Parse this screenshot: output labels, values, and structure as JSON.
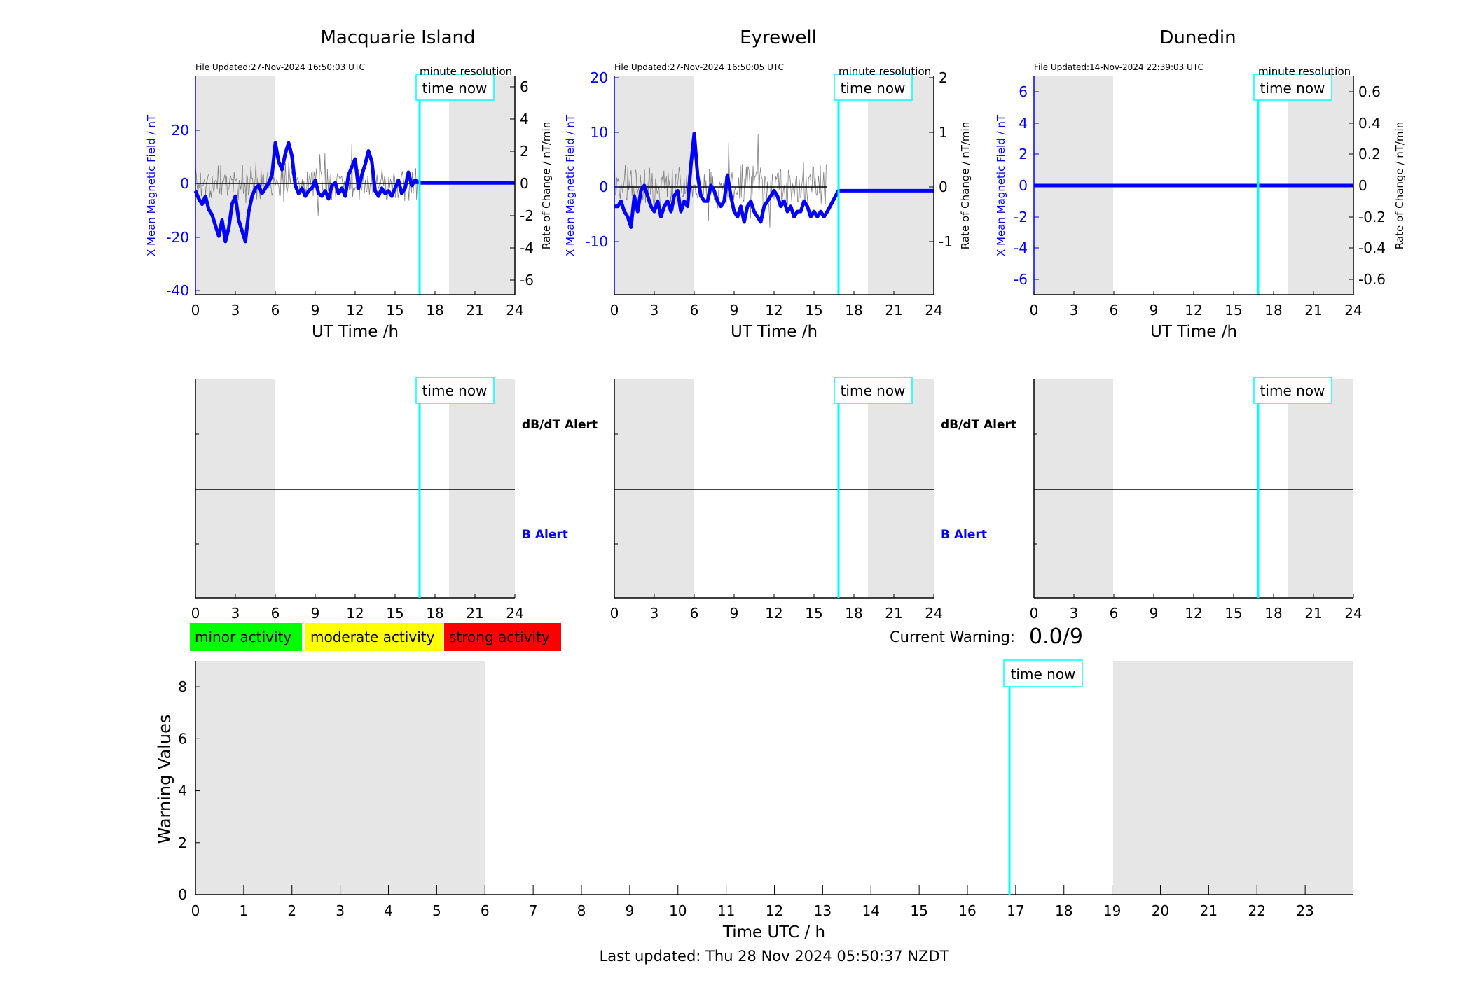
{
  "panels": [
    {
      "station": "Macquarie Island",
      "file_updated": "File Updated:27-Nov-2024 16:50:03 UTC",
      "resolution": "minute resolution",
      "left_ylabel": "X Mean Magnetic Field / nT",
      "right_ylabel": "Rate of Change / nT/min",
      "left_ticks": [
        "-40",
        "-20",
        "0",
        "20"
      ],
      "right_ticks": [
        "-6",
        "-4",
        "-2",
        "0",
        "2",
        "4",
        "6"
      ],
      "xlabel": "UT Time /h",
      "alert_dbdt": "dB/dT Alert",
      "alert_b": "B Alert"
    },
    {
      "station": "Eyrewell",
      "file_updated": "File Updated:27-Nov-2024 16:50:05 UTC",
      "resolution": "minute resolution",
      "left_ylabel": "X Mean Magnetic Field / nT",
      "right_ylabel": "Rate of Change / nT/min",
      "left_ticks": [
        "-10",
        "0",
        "10",
        "20"
      ],
      "right_ticks": [
        "-1",
        "0",
        "1",
        "2"
      ],
      "xlabel": "UT Time /h",
      "alert_dbdt": "dB/dT Alert",
      "alert_b": "B Alert"
    },
    {
      "station": "Dunedin",
      "file_updated": "File Updated:14-Nov-2024 22:39:03 UTC",
      "resolution": "minute resolution",
      "left_ylabel": "X Mean Magnetic Field / nT",
      "right_ylabel": "Rate of Change / nT/min",
      "left_ticks": [
        "-6",
        "-4",
        "-2",
        "0",
        "2",
        "4",
        "6"
      ],
      "right_ticks": [
        "-0.6",
        "-0.4",
        "-0.2",
        "0",
        "0.2",
        "0.4",
        "0.6"
      ],
      "xlabel": "UT Time /h"
    }
  ],
  "small_xticks": [
    "0",
    "3",
    "6",
    "9",
    "12",
    "15",
    "18",
    "21",
    "24"
  ],
  "time_now_label": "time now",
  "legend": {
    "minor": "minor activity",
    "moderate": "moderate activity",
    "strong": "strong activity"
  },
  "current_warning_label": "Current Warning:",
  "current_warning_value": "0.0/9",
  "warning_chart": {
    "ylabel": "Warning Values",
    "xlabel": "Time UTC / h",
    "yticks": [
      "0",
      "2",
      "4",
      "6",
      "8"
    ],
    "xticks": [
      "0",
      "1",
      "2",
      "3",
      "4",
      "5",
      "6",
      "7",
      "8",
      "9",
      "10",
      "11",
      "12",
      "13",
      "14",
      "15",
      "16",
      "17",
      "18",
      "19",
      "20",
      "21",
      "22",
      "23"
    ]
  },
  "last_updated": "Last updated: Thu 28 Nov 2024 05:50:37 NZDT",
  "colors": {
    "blue": "#0000ff",
    "cyan": "#00ffff",
    "night_shade": "#e6e6e6",
    "minor": "#00ff00",
    "moderate": "#ffff00",
    "strong": "#ff0000"
  },
  "chart_data": [
    {
      "type": "line",
      "title": "Macquarie Island",
      "xlabel": "UT Time /h",
      "ylabel": "X Mean Magnetic Field / nT",
      "y2label": "Rate of Change / nT/min",
      "xlim": [
        0,
        24
      ],
      "ylim": [
        -42,
        40
      ],
      "y2lim": [
        -7,
        6.7
      ],
      "time_now": 16.83,
      "night_shading_hours": [
        [
          0,
          6
        ],
        [
          19,
          24
        ]
      ],
      "series": [
        {
          "name": "X Mean Magnetic Field / nT",
          "x": [
            0,
            0.25,
            0.5,
            0.75,
            1,
            1.25,
            1.5,
            1.75,
            2,
            2.25,
            2.5,
            2.75,
            3,
            3.25,
            3.5,
            3.75,
            4,
            4.25,
            4.5,
            4.75,
            5,
            5.25,
            5.5,
            5.75,
            6,
            6.25,
            6.5,
            6.75,
            7,
            7.25,
            7.5,
            7.75,
            8,
            8.25,
            8.5,
            8.75,
            9,
            9.25,
            9.5,
            9.75,
            10,
            10.25,
            10.5,
            10.75,
            11,
            11.25,
            11.5,
            11.75,
            12,
            12.25,
            12.5,
            12.75,
            13,
            13.25,
            13.5,
            13.75,
            14,
            14.25,
            14.5,
            14.75,
            15,
            15.25,
            15.5,
            15.75,
            16,
            16.25,
            16.5,
            16.83,
            24
          ],
          "values": [
            -3,
            -6,
            -8,
            -5,
            -10,
            -12,
            -16,
            -20,
            -14,
            -22,
            -17,
            -8,
            -5,
            -14,
            -18,
            -22,
            -11,
            -5,
            -2,
            -1,
            -4,
            -2,
            0,
            3,
            15,
            8,
            5,
            11,
            15,
            10,
            -1,
            -4,
            -2,
            -5,
            -3,
            -2,
            1,
            -4,
            -5,
            -3,
            -6,
            -1,
            0,
            -4,
            -2,
            -5,
            3,
            6,
            9,
            -2,
            3,
            7,
            12,
            8,
            -3,
            -5,
            -2,
            -4,
            -3,
            -5,
            -2,
            1,
            -4,
            -2,
            4,
            -1,
            1,
            0,
            0
          ]
        },
        {
          "name": "Rate of Change / nT/min",
          "x": [
            0,
            16.8
          ],
          "values": [
            0,
            0
          ]
        }
      ]
    },
    {
      "type": "line",
      "title": "Eyrewell",
      "xlabel": "UT Time /h",
      "ylabel": "X Mean Magnetic Field / nT",
      "y2label": "Rate of Change / nT/min",
      "xlim": [
        0,
        24
      ],
      "ylim": [
        -20,
        22
      ],
      "y2lim": [
        -2,
        2.2
      ],
      "time_now": 16.83,
      "night_shading_hours": [
        [
          0,
          6
        ],
        [
          19,
          24
        ]
      ],
      "series": [
        {
          "name": "X Mean Magnetic Field / nT",
          "x": [
            0,
            0.25,
            0.5,
            0.75,
            1,
            1.25,
            1.5,
            1.75,
            2,
            2.25,
            2.5,
            2.75,
            3,
            3.25,
            3.5,
            3.75,
            4,
            4.25,
            4.5,
            4.75,
            5,
            5.25,
            5.5,
            5.75,
            6,
            6.25,
            6.5,
            6.75,
            7,
            7.25,
            7.5,
            7.75,
            8,
            8.25,
            8.5,
            8.75,
            9,
            9.25,
            9.5,
            9.75,
            10,
            10.25,
            10.5,
            10.75,
            11,
            11.25,
            11.5,
            11.75,
            12,
            12.25,
            12.5,
            12.75,
            13,
            13.25,
            13.5,
            13.75,
            14,
            14.25,
            14.5,
            14.75,
            15,
            15.25,
            15.5,
            15.75,
            16,
            16.83,
            24
          ],
          "values": [
            -3,
            -3,
            -2,
            -4,
            -5,
            -7,
            -1,
            -4,
            0,
            1,
            -1,
            -3,
            -4,
            -2,
            -5,
            -3,
            -2,
            -4,
            -1,
            0,
            -4,
            -2,
            -3,
            5,
            11,
            3,
            -1,
            -2,
            -2,
            1,
            0,
            -2,
            -3,
            -2,
            3,
            -1,
            -4,
            -5,
            -3,
            -6,
            -3,
            -2,
            -4,
            -5,
            -6,
            -3,
            -2,
            -1,
            0,
            -1,
            -3,
            -2,
            -4,
            -3,
            -5,
            -4,
            -4,
            -2,
            -3,
            -5,
            -4,
            -5,
            -4,
            -5,
            -4,
            0,
            0
          ]
        },
        {
          "name": "Rate of Change / nT/min",
          "x": [
            0,
            15.8
          ],
          "values": [
            0,
            0
          ]
        }
      ]
    },
    {
      "type": "line",
      "title": "Dunedin",
      "xlabel": "UT Time /h",
      "ylabel": "X Mean Magnetic Field / nT",
      "y2label": "Rate of Change / nT/min",
      "xlim": [
        0,
        24
      ],
      "ylim": [
        -7,
        7
      ],
      "y2lim": [
        -0.7,
        0.7
      ],
      "time_now": 16.83,
      "night_shading_hours": [
        [
          0,
          6
        ],
        [
          19,
          24
        ]
      ],
      "series": [
        {
          "name": "X Mean Magnetic Field / nT",
          "x": [
            0,
            24
          ],
          "values": [
            0,
            0
          ]
        }
      ]
    },
    {
      "type": "line",
      "title": "",
      "xlabel": "Time UTC / h",
      "ylabel": "Warning Values",
      "xlim": [
        0,
        24
      ],
      "ylim": [
        0,
        9
      ],
      "time_now": 16.83,
      "night_shading_hours": [
        [
          0,
          6
        ],
        [
          19,
          24
        ]
      ],
      "series": []
    }
  ]
}
